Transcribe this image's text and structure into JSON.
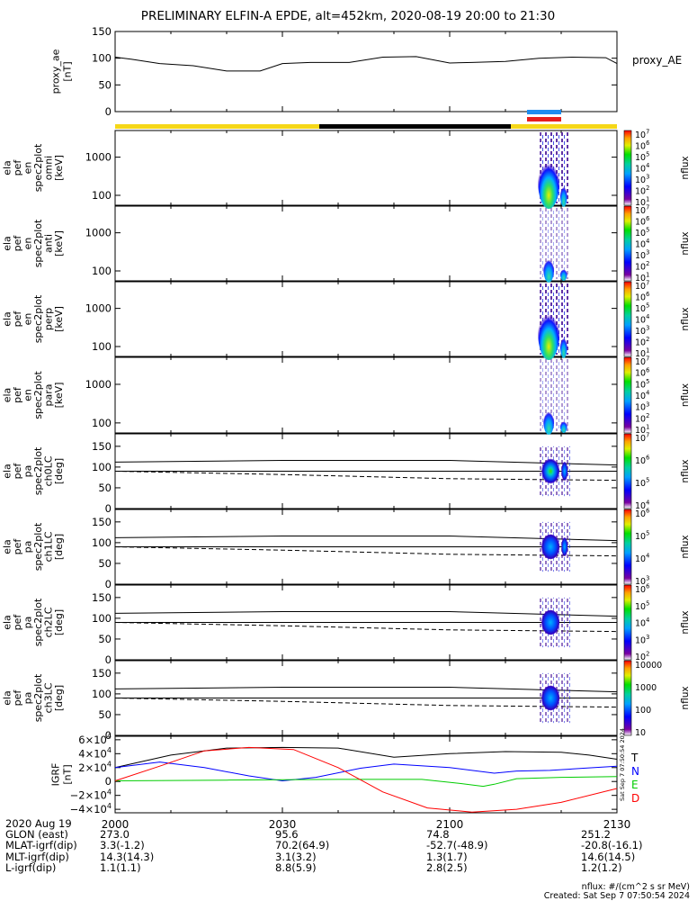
{
  "chart_data": {
    "type": "line",
    "title": "PRELIMINARY ELFIN-A EPDE, alt=452km, 2020-08-19 20:00 to 21:30",
    "x_ticks": [
      "2000",
      "2030",
      "2100",
      "2130"
    ],
    "panels": [
      {
        "name": "proxy_ae",
        "ylabel_lines": [
          "proxy_ae",
          "[nT]"
        ],
        "yticks": [
          "150",
          "100",
          "50",
          "0"
        ],
        "ylim": [
          0,
          150
        ],
        "legend": "proxy_AE",
        "series": [
          {
            "name": "proxy_AE",
            "x_minutes": [
              0,
              3,
              8,
              14,
              20,
              26,
              30,
              35,
              42,
              48,
              54,
              60,
              64,
              70,
              76,
              82,
              88,
              90
            ],
            "values": [
              102,
              98,
              90,
              86,
              76,
              76,
              90,
              92,
              92,
              102,
              103,
              91,
              92,
              94,
              100,
              102,
              101,
              90
            ]
          }
        ]
      },
      {
        "name": "spec-omni",
        "ylabel_lines": [
          "ela",
          "pef",
          "en",
          "spec2plot",
          "omni",
          "[keV]"
        ],
        "yticks": [
          "1000",
          "100"
        ],
        "colorbar_ticks": [
          "10^7",
          "10^6",
          "10^5",
          "10^4",
          "10^3",
          "10^2",
          "10^1"
        ],
        "colorbar_label": "nflux"
      },
      {
        "name": "spec-anti",
        "ylabel_lines": [
          "ela",
          "pef",
          "en",
          "spec2plot",
          "anti",
          "[keV]"
        ],
        "yticks": [
          "1000",
          "100"
        ],
        "colorbar_ticks": [
          "10^7",
          "10^6",
          "10^5",
          "10^4",
          "10^3",
          "10^2",
          "10^1"
        ],
        "colorbar_label": "nflux"
      },
      {
        "name": "spec-perp",
        "ylabel_lines": [
          "ela",
          "pef",
          "en",
          "spec2plot",
          "perp",
          "[keV]"
        ],
        "yticks": [
          "1000",
          "100"
        ],
        "colorbar_ticks": [
          "10^7",
          "10^6",
          "10^5",
          "10^4",
          "10^3",
          "10^2",
          "10^1"
        ],
        "colorbar_label": "nflux"
      },
      {
        "name": "spec-para",
        "ylabel_lines": [
          "ela",
          "pef",
          "en",
          "spec2plot",
          "para",
          "[keV]"
        ],
        "yticks": [
          "1000",
          "100"
        ],
        "colorbar_ticks": [
          "10^7",
          "10^6",
          "10^5",
          "10^4",
          "10^3",
          "10^2",
          "10^1"
        ],
        "colorbar_label": "nflux"
      },
      {
        "name": "pa-ch0",
        "ylabel_lines": [
          "ela",
          "pef",
          "pa",
          "spec2plot",
          "ch0LC",
          "[deg]"
        ],
        "yticks": [
          "150",
          "100",
          "50",
          "0"
        ],
        "ylim": [
          0,
          180
        ],
        "colorbar_ticks": [
          "10^7",
          "10^6",
          "10^5",
          "10^4"
        ],
        "colorbar_label": "nflux"
      },
      {
        "name": "pa-ch1",
        "ylabel_lines": [
          "ela",
          "pef",
          "pa",
          "spec2plot",
          "ch1LC",
          "[deg]"
        ],
        "yticks": [
          "150",
          "100",
          "50",
          "0"
        ],
        "ylim": [
          0,
          180
        ],
        "colorbar_ticks": [
          "10^6",
          "10^5",
          "10^4",
          "10^3"
        ],
        "colorbar_label": "nflux"
      },
      {
        "name": "pa-ch2",
        "ylabel_lines": [
          "ela",
          "pef",
          "pa",
          "spec2plot",
          "ch2LC",
          "[deg]"
        ],
        "yticks": [
          "150",
          "100",
          "50",
          "0"
        ],
        "ylim": [
          0,
          180
        ],
        "colorbar_ticks": [
          "10^6",
          "10^5",
          "10^4",
          "10^3",
          "10^2"
        ],
        "colorbar_label": "nflux"
      },
      {
        "name": "pa-ch3",
        "ylabel_lines": [
          "ela",
          "pef",
          "pa",
          "spec2plot",
          "ch3LC",
          "[deg]"
        ],
        "yticks": [
          "150",
          "100",
          "50",
          "0"
        ],
        "ylim": [
          0,
          180
        ],
        "colorbar_ticks": [
          "10000",
          "1000",
          "100",
          "10"
        ],
        "colorbar_label": "nflux"
      },
      {
        "name": "igrf",
        "ylabel_lines": [
          "IGRF",
          "[nT]"
        ],
        "yticks": [
          "6×10^4",
          "4×10^4",
          "2×10^4",
          "0",
          "−2×10^4",
          "−4×10^4"
        ],
        "ylim": [
          -45000,
          65000
        ],
        "legend": [
          "T",
          "N",
          "E",
          "D"
        ],
        "series": [
          {
            "name": "T",
            "color": "#000000",
            "x_minutes": [
              0,
              10,
              20,
              30,
              40,
              50,
              60,
              70,
              80,
              85,
              90
            ],
            "values": [
              20000,
              38000,
              48000,
              49000,
              48000,
              35000,
              40000,
              43000,
              42000,
              38000,
              32000
            ]
          },
          {
            "name": "N",
            "color": "#0000ff",
            "x_minutes": [
              0,
              8,
              16,
              24,
              30,
              36,
              44,
              50,
              60,
              68,
              72,
              78,
              84,
              90
            ],
            "values": [
              20000,
              28000,
              20000,
              8000,
              1000,
              6000,
              19000,
              25000,
              20000,
              12000,
              15000,
              16000,
              19000,
              22000
            ]
          },
          {
            "name": "E",
            "color": "#00cc00",
            "x_minutes": [
              0,
              20,
              40,
              55,
              62,
              66,
              68,
              72,
              80,
              90
            ],
            "values": [
              1000,
              2000,
              3000,
              3000,
              -3000,
              -7000,
              -4000,
              4000,
              6000,
              7000
            ]
          },
          {
            "name": "D",
            "color": "#ff0000",
            "x_minutes": [
              0,
              8,
              16,
              24,
              32,
              40,
              48,
              56,
              64,
              72,
              80,
              90
            ],
            "values": [
              1000,
              22000,
              44000,
              49000,
              46000,
              20000,
              -15000,
              -38000,
              -44000,
              -40000,
              -30000,
              -10000
            ]
          }
        ]
      }
    ]
  },
  "footer_table": {
    "rows": [
      [
        "2020 Aug 19",
        "2000",
        "2030",
        "2100",
        "2130"
      ],
      [
        "GLON (east)",
        "273.0",
        "95.6",
        "74.8",
        "251.2"
      ],
      [
        "MLAT-igrf(dip)",
        "3.3(-1.2)",
        "70.2(64.9)",
        "-52.7(-48.9)",
        "-20.8(-16.1)"
      ],
      [
        "MLT-igrf(dip)",
        "14.3(14.3)",
        "3.1(3.2)",
        "1.3(1.7)",
        "14.6(14.5)"
      ],
      [
        "L-igrf(dip)",
        "1.1(1.1)",
        "8.8(5.9)",
        "2.8(2.5)",
        "1.2(1.2)"
      ]
    ]
  },
  "side_stamp": "Sat Sep 7 07:50:54 2024",
  "nflux_units": "nflux: #/(cm^2 s sr MeV)",
  "created": "Created: Sat Sep 7 07:50:54 2024",
  "colors": {
    "sunlit_bar": "#f5d718",
    "shadow_bar": "#000000",
    "science_blue": "#1e8cf0",
    "science_red": "#e61e1e"
  }
}
